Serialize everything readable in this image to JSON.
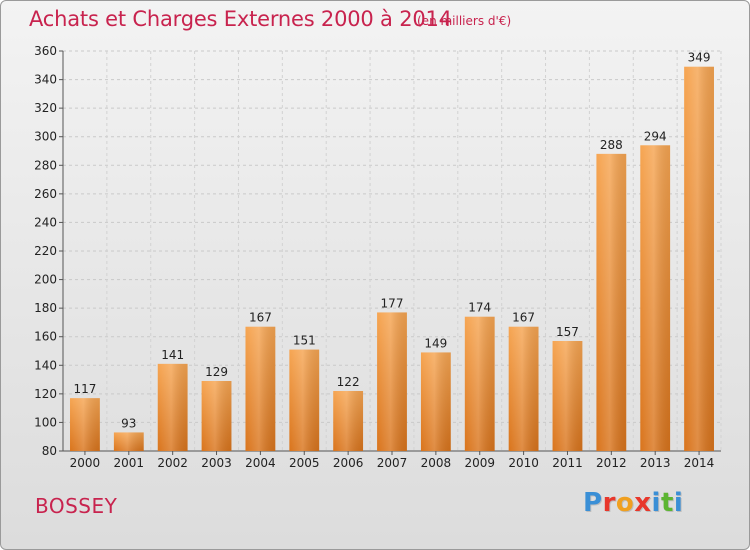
{
  "header": {
    "title": "Achats et Charges Externes 2000 à 2014",
    "subtitle": "(en milliers d'€)"
  },
  "footer": {
    "city": "BOSSEY",
    "logo_letters": [
      "P",
      "r",
      "o",
      "x",
      "i",
      "t",
      "i"
    ],
    "logo_colors": [
      "#3a8fd6",
      "#e8372b",
      "#f0a020",
      "#e8372b",
      "#3a8fd6",
      "#5cb531",
      "#3a8fd6"
    ]
  },
  "chart_data": {
    "type": "bar",
    "title": "Achats et Charges Externes 2000 à 2014",
    "subtitle": "(en milliers d'€)",
    "categories": [
      "2000",
      "2001",
      "2002",
      "2003",
      "2004",
      "2005",
      "2006",
      "2007",
      "2008",
      "2009",
      "2010",
      "2011",
      "2012",
      "2013",
      "2014"
    ],
    "values": [
      117,
      93,
      141,
      129,
      167,
      151,
      122,
      177,
      149,
      174,
      167,
      157,
      288,
      294,
      349
    ],
    "xlabel": "",
    "ylabel": "",
    "ylim": [
      80,
      360
    ],
    "yticks": [
      80,
      100,
      120,
      140,
      160,
      180,
      200,
      220,
      240,
      260,
      280,
      300,
      320,
      340,
      360
    ],
    "grid": true,
    "bar_color": "#f09a3e",
    "bar_color_dark": "#d9741c"
  }
}
